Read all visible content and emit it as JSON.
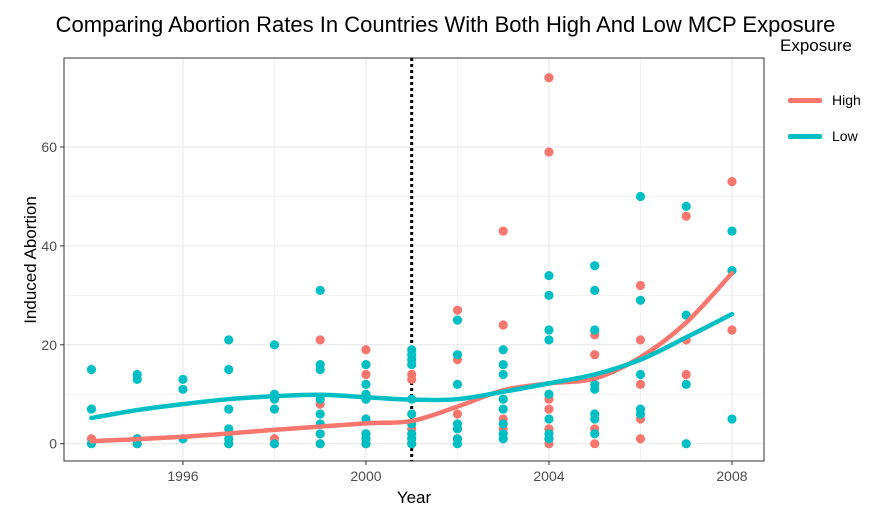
{
  "chart_data": {
    "type": "scatter",
    "title": "Comparing Abortion Rates In Countries With Both High And Low MCP Exposure",
    "xlabel": "Year",
    "ylabel": "Induced Abortion",
    "xlim": [
      1993.4,
      2008.7
    ],
    "ylim": [
      -3.5,
      78
    ],
    "x_ticks": [
      1996,
      2000,
      2004,
      2008
    ],
    "y_ticks": [
      0,
      20,
      40,
      60
    ],
    "grid": true,
    "vline": {
      "x": 2001,
      "style": "dotted",
      "color": "#000000"
    },
    "legend": {
      "title": "Exposure",
      "position": "right"
    },
    "series": [
      {
        "name": "High",
        "color": "#F8766D",
        "points": [
          [
            1994,
            1
          ],
          [
            1995,
            0
          ],
          [
            1995,
            1
          ],
          [
            1996,
            1
          ],
          [
            1997,
            0
          ],
          [
            1997,
            2
          ],
          [
            1998,
            0
          ],
          [
            1998,
            1
          ],
          [
            1999,
            0
          ],
          [
            1999,
            2
          ],
          [
            1999,
            8
          ],
          [
            1999,
            21
          ],
          [
            2000,
            0
          ],
          [
            2000,
            2
          ],
          [
            2000,
            14
          ],
          [
            2000,
            19
          ],
          [
            2001,
            0
          ],
          [
            2001,
            1
          ],
          [
            2001,
            3
          ],
          [
            2001,
            13
          ],
          [
            2001,
            14
          ],
          [
            2002,
            1
          ],
          [
            2002,
            3
          ],
          [
            2002,
            6
          ],
          [
            2002,
            17
          ],
          [
            2002,
            27
          ],
          [
            2003,
            1
          ],
          [
            2003,
            3
          ],
          [
            2003,
            5
          ],
          [
            2003,
            24
          ],
          [
            2003,
            43
          ],
          [
            2004,
            0
          ],
          [
            2004,
            1
          ],
          [
            2004,
            3
          ],
          [
            2004,
            7
          ],
          [
            2004,
            9
          ],
          [
            2004,
            59
          ],
          [
            2004,
            74
          ],
          [
            2005,
            0
          ],
          [
            2005,
            3
          ],
          [
            2005,
            18
          ],
          [
            2005,
            22
          ],
          [
            2006,
            1
          ],
          [
            2006,
            5
          ],
          [
            2006,
            12
          ],
          [
            2006,
            21
          ],
          [
            2006,
            32
          ],
          [
            2007,
            14
          ],
          [
            2007,
            21
          ],
          [
            2007,
            46
          ],
          [
            2008,
            23
          ],
          [
            2008,
            53
          ]
        ],
        "trend": [
          [
            1994,
            0.5
          ],
          [
            1996,
            1.4
          ],
          [
            1998,
            2.8
          ],
          [
            2000,
            4.1
          ],
          [
            2001,
            4.6
          ],
          [
            2002,
            7.5
          ],
          [
            2003,
            10.8
          ],
          [
            2004,
            12.2
          ],
          [
            2005,
            13.2
          ],
          [
            2006,
            17.5
          ],
          [
            2007,
            24.5
          ],
          [
            2008,
            34.5
          ]
        ]
      },
      {
        "name": "Low",
        "color": "#00BFC4",
        "points": [
          [
            1994,
            0
          ],
          [
            1994,
            7
          ],
          [
            1994,
            15
          ],
          [
            1995,
            0
          ],
          [
            1995,
            1
          ],
          [
            1995,
            13
          ],
          [
            1995,
            14
          ],
          [
            1996,
            1
          ],
          [
            1996,
            11
          ],
          [
            1996,
            13
          ],
          [
            1997,
            0
          ],
          [
            1997,
            1
          ],
          [
            1997,
            3
          ],
          [
            1997,
            7
          ],
          [
            1997,
            15
          ],
          [
            1997,
            21
          ],
          [
            1998,
            0
          ],
          [
            1998,
            7
          ],
          [
            1998,
            9
          ],
          [
            1998,
            10
          ],
          [
            1998,
            20
          ],
          [
            1999,
            0
          ],
          [
            1999,
            2
          ],
          [
            1999,
            4
          ],
          [
            1999,
            6
          ],
          [
            1999,
            9
          ],
          [
            1999,
            15
          ],
          [
            1999,
            16
          ],
          [
            1999,
            31
          ],
          [
            2000,
            0
          ],
          [
            2000,
            1
          ],
          [
            2000,
            2
          ],
          [
            2000,
            5
          ],
          [
            2000,
            9
          ],
          [
            2000,
            10
          ],
          [
            2000,
            12
          ],
          [
            2000,
            16
          ],
          [
            2001,
            0
          ],
          [
            2001,
            1
          ],
          [
            2001,
            2
          ],
          [
            2001,
            4
          ],
          [
            2001,
            6
          ],
          [
            2001,
            9
          ],
          [
            2001,
            16
          ],
          [
            2001,
            17
          ],
          [
            2001,
            18
          ],
          [
            2001,
            19
          ],
          [
            2002,
            0
          ],
          [
            2002,
            1
          ],
          [
            2002,
            3
          ],
          [
            2002,
            4
          ],
          [
            2002,
            12
          ],
          [
            2002,
            18
          ],
          [
            2002,
            25
          ],
          [
            2003,
            1
          ],
          [
            2003,
            2
          ],
          [
            2003,
            4
          ],
          [
            2003,
            7
          ],
          [
            2003,
            9
          ],
          [
            2003,
            14
          ],
          [
            2003,
            16
          ],
          [
            2003,
            19
          ],
          [
            2004,
            1
          ],
          [
            2004,
            2
          ],
          [
            2004,
            5
          ],
          [
            2004,
            10
          ],
          [
            2004,
            21
          ],
          [
            2004,
            23
          ],
          [
            2004,
            30
          ],
          [
            2004,
            34
          ],
          [
            2005,
            2
          ],
          [
            2005,
            5
          ],
          [
            2005,
            6
          ],
          [
            2005,
            11
          ],
          [
            2005,
            12
          ],
          [
            2005,
            23
          ],
          [
            2005,
            31
          ],
          [
            2005,
            36
          ],
          [
            2006,
            6
          ],
          [
            2006,
            7
          ],
          [
            2006,
            14
          ],
          [
            2006,
            29
          ],
          [
            2006,
            50
          ],
          [
            2007,
            0
          ],
          [
            2007,
            12
          ],
          [
            2007,
            26
          ],
          [
            2007,
            48
          ],
          [
            2008,
            5
          ],
          [
            2008,
            35
          ],
          [
            2008,
            43
          ]
        ],
        "trend": [
          [
            1994,
            5.2
          ],
          [
            1995,
            6.8
          ],
          [
            1996,
            8.0
          ],
          [
            1997,
            9.0
          ],
          [
            1998,
            9.6
          ],
          [
            1999,
            9.9
          ],
          [
            2000,
            9.4
          ],
          [
            2001,
            8.9
          ],
          [
            2002,
            9.0
          ],
          [
            2003,
            10.5
          ],
          [
            2004,
            12.2
          ],
          [
            2005,
            14.0
          ],
          [
            2006,
            17.0
          ],
          [
            2007,
            21.5
          ],
          [
            2008,
            26.2
          ]
        ]
      }
    ]
  }
}
